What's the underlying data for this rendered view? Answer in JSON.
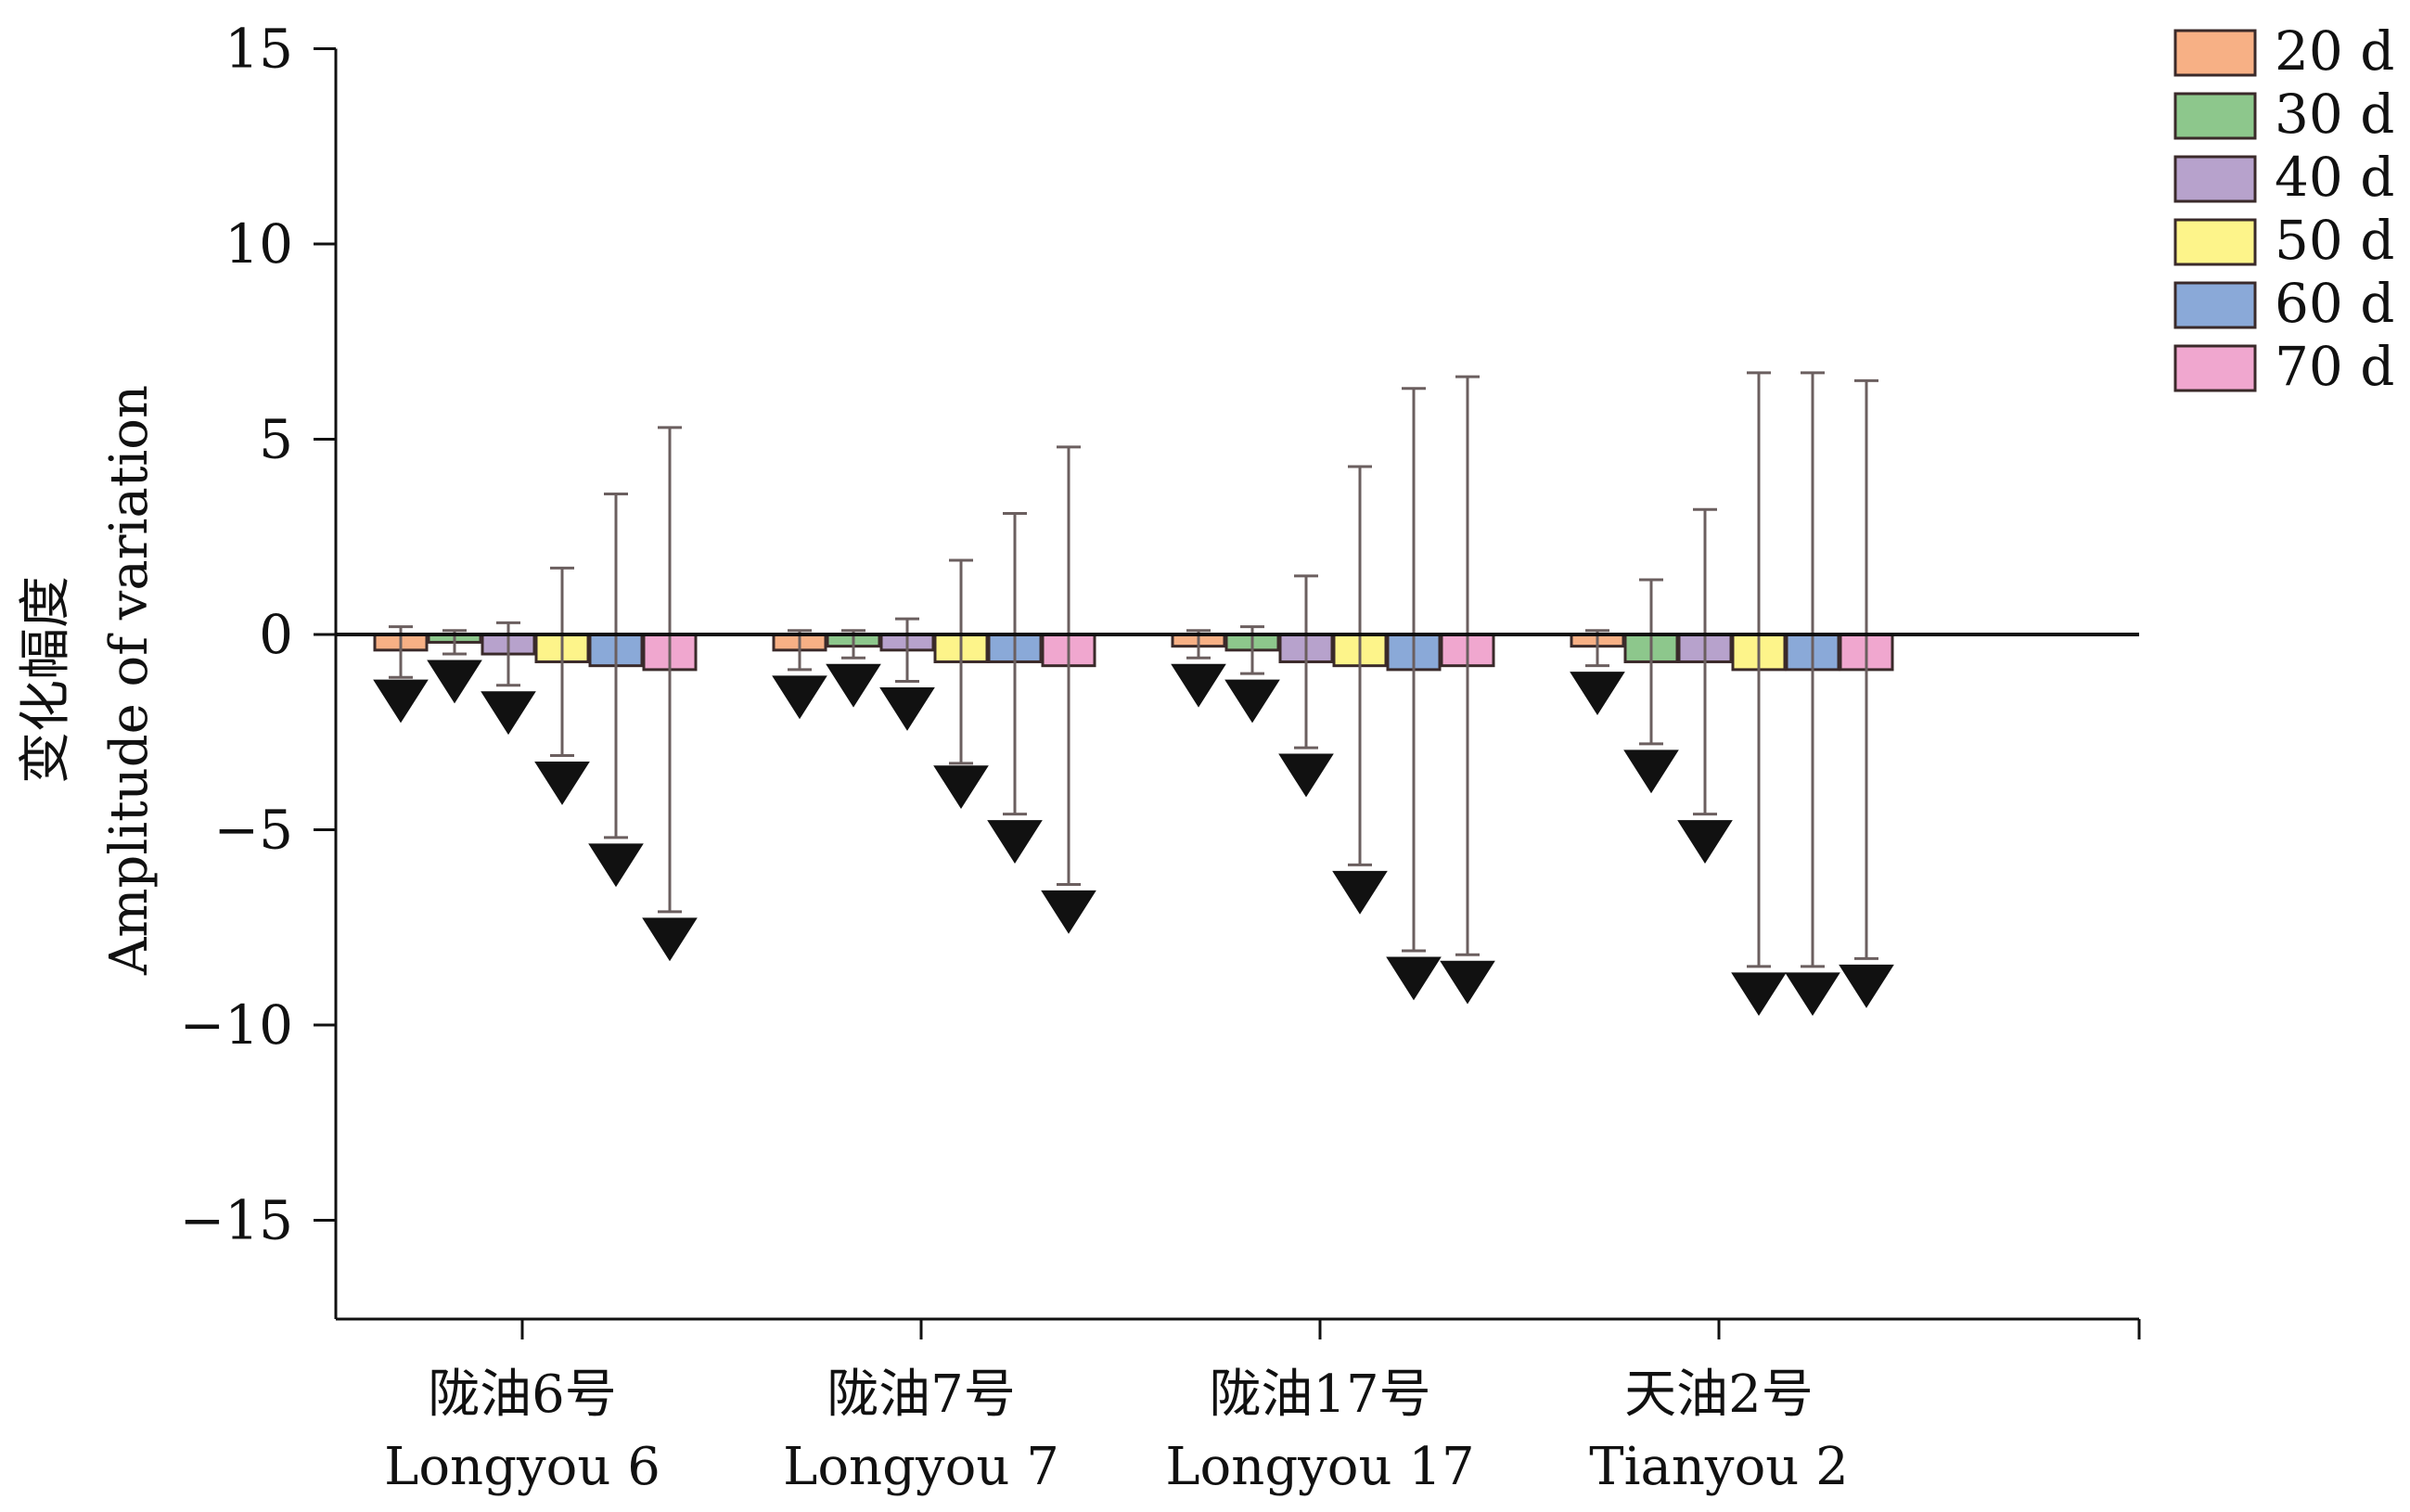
{
  "chart_data": {
    "type": "bar",
    "ylabel_zh": "变化幅度",
    "ylabel": "Amplitude of variation",
    "ylim": [
      -17.5,
      15
    ],
    "yticks": [
      15,
      10,
      5,
      0,
      -5,
      -10,
      -15
    ],
    "ytick_labels": [
      "15",
      "10",
      "5",
      "0",
      "−5",
      "−10",
      "−15"
    ],
    "categories": [
      {
        "zh": "陇油6号",
        "en": "Longyou 6"
      },
      {
        "zh": "陇油7号",
        "en": "Longyou 7"
      },
      {
        "zh": "陇油17号",
        "en": "Longyou 17"
      },
      {
        "zh": "天油2号",
        "en": "Tianyou 2"
      }
    ],
    "series": [
      {
        "name": "20 d",
        "color": "#f7b085",
        "values": [
          -0.4,
          -0.4,
          -0.3,
          -0.3
        ],
        "err_upper": [
          0.2,
          0.1,
          0.1,
          0.1
        ],
        "err_lower": [
          -1.1,
          -0.9,
          -0.6,
          -0.8
        ],
        "marker": [
          -1.7,
          -1.6,
          -1.3,
          -1.5
        ]
      },
      {
        "name": "30 d",
        "color": "#8dc78c",
        "values": [
          -0.2,
          -0.3,
          -0.4,
          -0.7
        ],
        "err_upper": [
          0.1,
          0.1,
          0.2,
          1.4
        ],
        "err_lower": [
          -0.5,
          -0.6,
          -1.0,
          -2.8
        ],
        "marker": [
          -1.2,
          -1.3,
          -1.7,
          -3.5
        ]
      },
      {
        "name": "40 d",
        "color": "#b7a2cc",
        "values": [
          -0.5,
          -0.4,
          -0.7,
          -0.7
        ],
        "err_upper": [
          0.3,
          0.4,
          1.5,
          3.2
        ],
        "err_lower": [
          -1.3,
          -1.2,
          -2.9,
          -4.6
        ],
        "marker": [
          -2.0,
          -1.9,
          -3.6,
          -5.3
        ]
      },
      {
        "name": "50 d",
        "color": "#fdf48a",
        "values": [
          -0.7,
          -0.7,
          -0.8,
          -0.9
        ],
        "err_upper": [
          1.7,
          1.9,
          4.3,
          6.7
        ],
        "err_lower": [
          -3.1,
          -3.3,
          -5.9,
          -8.5
        ],
        "marker": [
          -3.8,
          -3.9,
          -6.6,
          -9.2
        ]
      },
      {
        "name": "60 d",
        "color": "#8aa9d8",
        "values": [
          -0.8,
          -0.7,
          -0.9,
          -0.9
        ],
        "err_upper": [
          3.6,
          3.1,
          6.3,
          6.7
        ],
        "err_lower": [
          -5.2,
          -4.6,
          -8.1,
          -8.5
        ],
        "marker": [
          -5.9,
          -5.3,
          -8.8,
          -9.2
        ]
      },
      {
        "name": "70 d",
        "color": "#f0a7cf",
        "values": [
          -0.9,
          -0.8,
          -0.8,
          -0.9
        ],
        "err_upper": [
          5.3,
          4.8,
          6.6,
          6.5
        ],
        "err_lower": [
          -7.1,
          -6.4,
          -8.2,
          -8.3
        ],
        "marker": [
          -7.8,
          -7.1,
          -8.9,
          -9.0
        ]
      }
    ],
    "legend_position": "top-right",
    "grid": false
  }
}
